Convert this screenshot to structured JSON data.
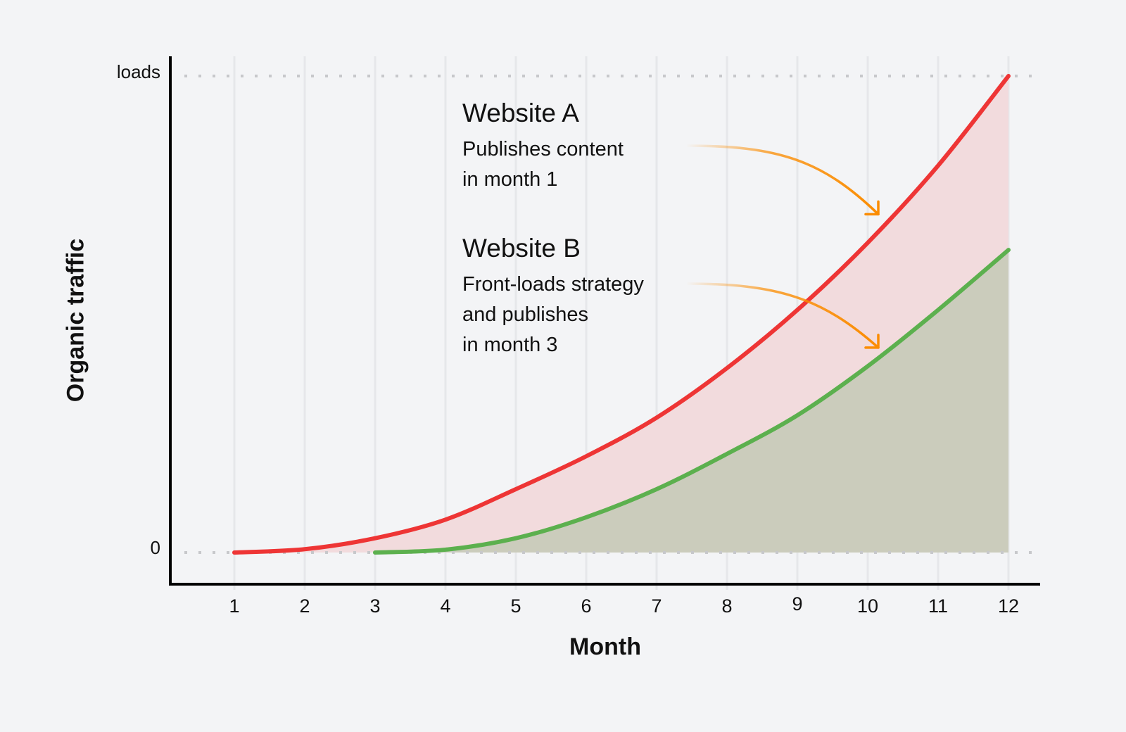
{
  "chart_data": {
    "type": "area",
    "title": "",
    "xlabel": "Month",
    "ylabel": "Organic traffic",
    "x": [
      1,
      2,
      3,
      4,
      5,
      6,
      7,
      8,
      9,
      10,
      11,
      12
    ],
    "x_tick_labels": [
      "1",
      "2",
      "3",
      "4",
      "5",
      "6",
      "7",
      "8",
      "9",
      "10",
      "11",
      "12"
    ],
    "y_tick_labels": [
      {
        "value": 0,
        "label": "0"
      },
      {
        "value": 100,
        "label": "loads"
      }
    ],
    "ylim": [
      0,
      100
    ],
    "grid": {
      "vertical": true,
      "horizontal_dotted_at": [
        0,
        100
      ]
    },
    "legend": "none",
    "series": [
      {
        "name": "Website A",
        "color": "#ee3535",
        "fill": "#f2dbdd",
        "x": [
          1,
          2,
          3,
          4,
          5,
          6,
          7,
          8,
          9,
          10,
          11,
          12
        ],
        "values": [
          0,
          0.7,
          3.0,
          6.9,
          13.3,
          20.2,
          28.3,
          38.7,
          50.9,
          65.0,
          81.2,
          100
        ]
      },
      {
        "name": "Website B",
        "color": "#5cb04e",
        "fill": "#cbccbc",
        "x": [
          3,
          4,
          5,
          6,
          7,
          8,
          9,
          10,
          11,
          12
        ],
        "values": [
          0,
          0.6,
          3.0,
          7.4,
          13.3,
          20.7,
          28.8,
          39.1,
          50.9,
          63.5
        ]
      }
    ],
    "annotations": [
      {
        "title": "Website A",
        "text": [
          "Publishes content",
          "in month 1"
        ],
        "arrow_color": "#fb8c00",
        "arrow_target": {
          "x": 10.15,
          "y": 71
        }
      },
      {
        "title": "Website B",
        "text": [
          "Front-loads strategy",
          "and publishes",
          "in month 3"
        ],
        "arrow_color": "#fb8c00",
        "arrow_target": {
          "x": 10.15,
          "y": 43
        }
      }
    ]
  },
  "axes": {
    "x_title": "Month",
    "y_title": "Organic traffic",
    "y_top_label": "loads",
    "y_bottom_label": "0"
  },
  "annotation_a": {
    "title": "Website A",
    "line1": "Publishes content",
    "line2": "in month 1"
  },
  "annotation_b": {
    "title": "Website B",
    "line1": "Front-loads strategy",
    "line2": "and publishes",
    "line3": "in month 3"
  },
  "colors": {
    "background": "#f3f4f6",
    "website_a_line": "#ee3535",
    "website_a_fill": "#f2dbdd",
    "website_b_line": "#5cb04e",
    "website_b_fill": "#cbccbc",
    "arrow": "#fb8c00",
    "axis": "#000000",
    "grid": "#e6e7ea"
  }
}
